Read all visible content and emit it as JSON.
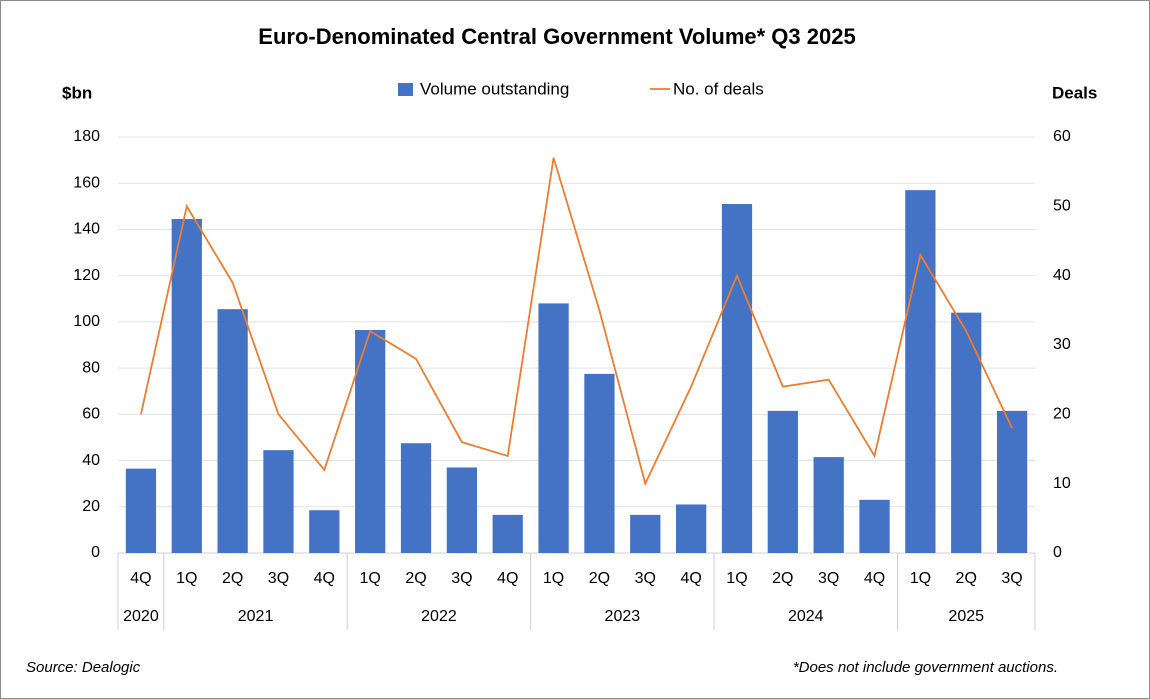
{
  "chart_data": {
    "type": "combo",
    "title": "Euro-Denominated Central Government Volume* Q3 2025",
    "y_label": "$bn",
    "y2_label": "Deals",
    "categories": [
      "4Q",
      "1Q",
      "2Q",
      "3Q",
      "4Q",
      "1Q",
      "2Q",
      "3Q",
      "4Q",
      "1Q",
      "2Q",
      "3Q",
      "4Q",
      "1Q",
      "2Q",
      "3Q",
      "4Q",
      "1Q",
      "2Q",
      "3Q"
    ],
    "year_labels": [
      "2020",
      "2021",
      null,
      null,
      null,
      "2022",
      null,
      null,
      null,
      "2023",
      null,
      null,
      null,
      "2024",
      null,
      null,
      null,
      "2025",
      null,
      null
    ],
    "series": [
      {
        "name": "Volume outstanding",
        "type": "bar",
        "color": "#4472c4",
        "values": [
          36.5,
          144.5,
          105.5,
          44.5,
          18.5,
          96.5,
          47.5,
          37,
          16.5,
          108,
          77.5,
          16.5,
          21,
          151,
          61.5,
          41.5,
          23,
          157,
          104,
          61.5
        ]
      },
      {
        "name": "No. of deals",
        "type": "line",
        "axis": "y2",
        "color": "#ed7d31",
        "values": [
          20,
          50,
          39,
          20,
          12,
          32,
          28,
          16,
          14,
          57,
          35,
          10,
          24,
          40,
          24,
          25,
          14,
          43,
          32,
          18
        ]
      }
    ],
    "ylim": [
      0,
      180
    ],
    "yticks": [
      0,
      20,
      40,
      60,
      80,
      100,
      120,
      140,
      160,
      180
    ],
    "y2lim": [
      0,
      60
    ],
    "y2ticks": [
      0,
      10,
      20,
      30,
      40,
      50,
      60
    ],
    "grid": true,
    "legend_position": "top",
    "source": "Source: Dealogic",
    "footnote": "*Does not include government auctions."
  }
}
